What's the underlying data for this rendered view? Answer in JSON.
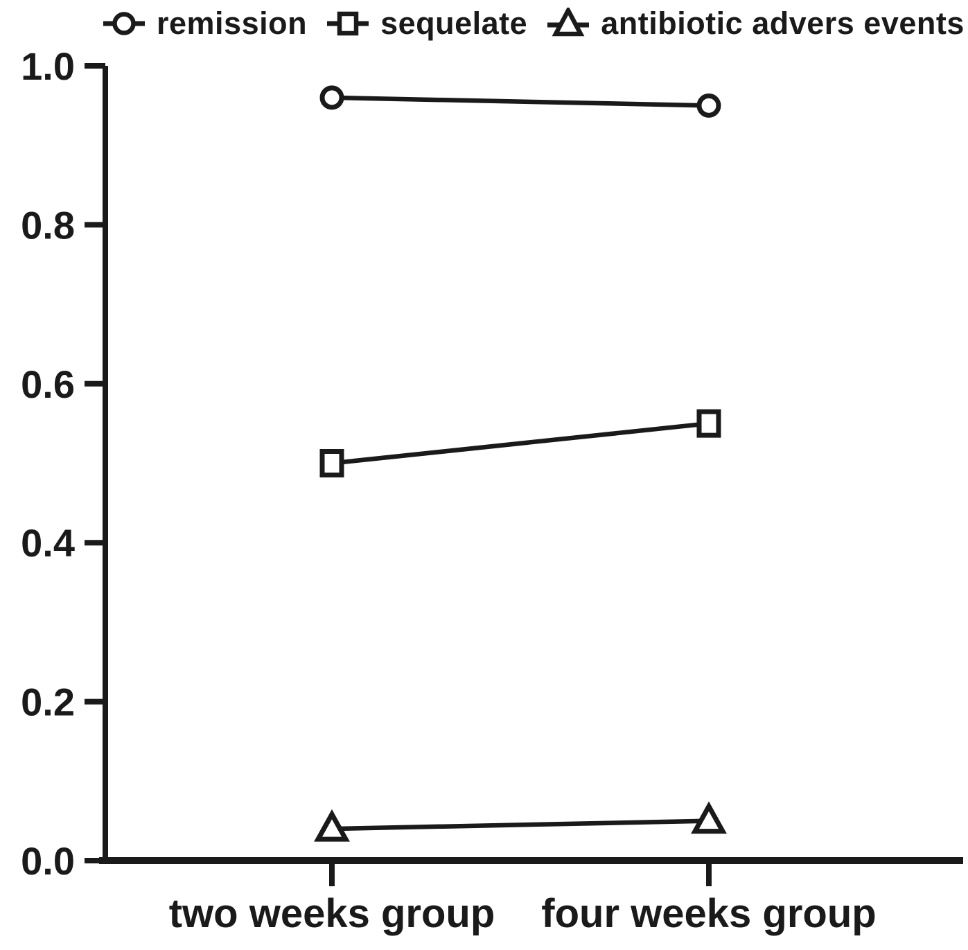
{
  "figure": {
    "background": "#ffffff",
    "ink_color": "#1a1a1a",
    "marker_fill": "#ffffff"
  },
  "chart_data": {
    "type": "line",
    "categories": [
      "two weeks group",
      "four weeks group"
    ],
    "series": [
      {
        "name": "remission",
        "marker": "circle",
        "values": [
          0.96,
          0.95
        ]
      },
      {
        "name": "sequelate",
        "marker": "square",
        "values": [
          0.5,
          0.55
        ]
      },
      {
        "name": "antibiotic advers events",
        "marker": "triangle",
        "values": [
          0.04,
          0.05
        ]
      }
    ],
    "ylim": [
      0.0,
      1.0
    ],
    "ytick_values": [
      0.0,
      0.2,
      0.4,
      0.6,
      0.8,
      1.0
    ],
    "ytick_labels": [
      "0.0",
      "0.2",
      "0.4",
      "0.6",
      "0.8",
      "1.0"
    ],
    "grid": false,
    "legend_position": "top"
  }
}
